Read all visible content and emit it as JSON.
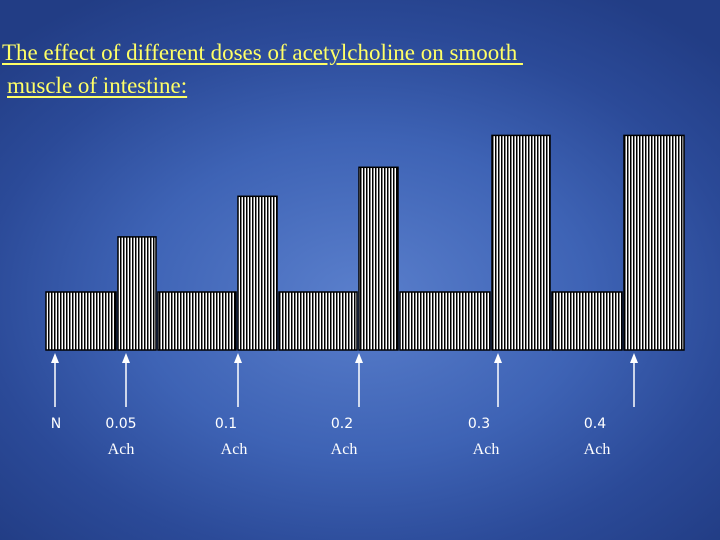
{
  "slide": {
    "title_line1": "The effect of different doses of acetylcholine on smooth ",
    "title_line2": "muscle of intestine:"
  },
  "colors": {
    "background": "#3e63b5",
    "title": "#ffff66",
    "trace_fill": "#ffffff",
    "trace_stripes": "#000000",
    "arrows": "#ffffff"
  },
  "markers": [
    {
      "dose": "N",
      "agent": ""
    },
    {
      "dose": "0.05",
      "agent": "Ach"
    },
    {
      "dose": "0.1",
      "agent": "Ach"
    },
    {
      "dose": "0.2",
      "agent": "Ach"
    },
    {
      "dose": "0.3",
      "agent": "Ach"
    },
    {
      "dose": "0.4",
      "agent": "Ach"
    }
  ],
  "chart_data": {
    "type": "bar",
    "title": "The effect of different doses of acetylcholine on smooth muscle of intestine:",
    "categories": [
      "N",
      "0.05",
      "0.1",
      "0.2",
      "0.3",
      "0.4"
    ],
    "baseline_response": 1,
    "peak_response": [
      1,
      1.95,
      2.65,
      3.15,
      3.7,
      3.7
    ],
    "xlabel": "",
    "ylabel": "",
    "grid": false
  }
}
